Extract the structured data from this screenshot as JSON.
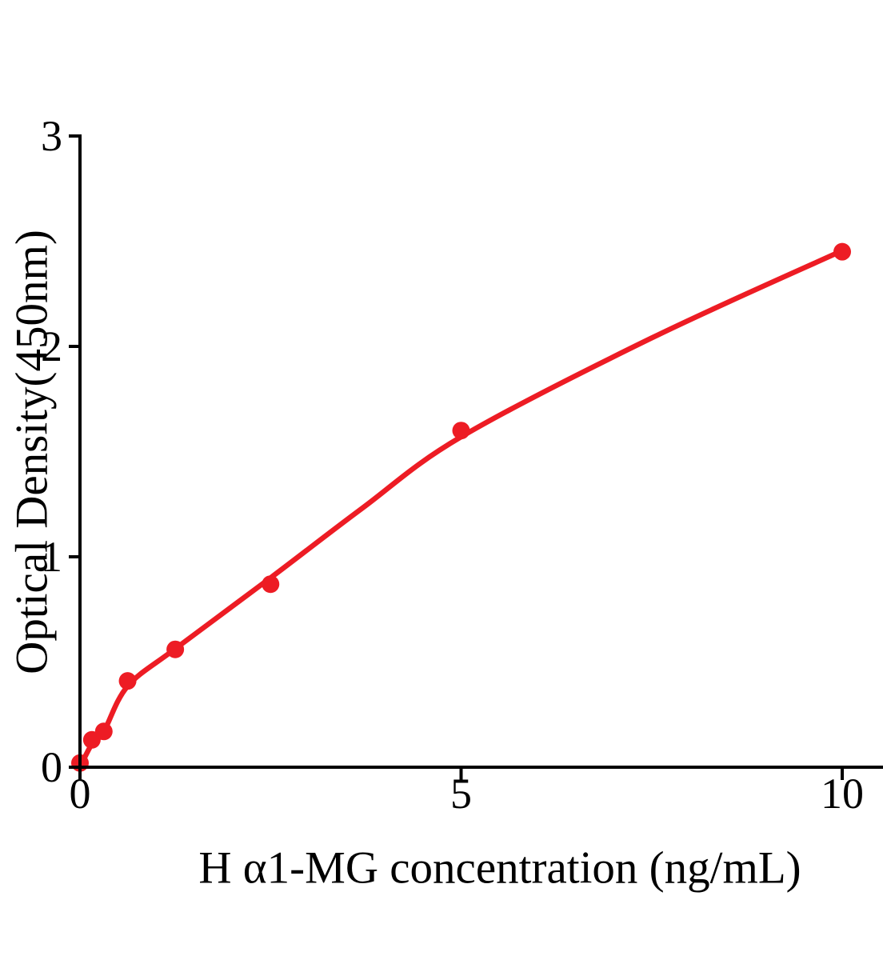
{
  "chart_data": {
    "type": "scatter",
    "title": "",
    "xlabel": "H α1-MG concentration (ng/mL)",
    "ylabel": "Optical Density(450nm)",
    "xlim": [
      0,
      10
    ],
    "ylim": [
      0,
      3
    ],
    "x_ticks": [
      0,
      5,
      10
    ],
    "y_ticks": [
      0,
      1,
      2,
      3
    ],
    "grid": false,
    "legend": false,
    "background_color": "#ffffff",
    "axis_color": "#000000",
    "marker_color": "#ED1C24",
    "curve_color": "#ED1C24",
    "points": [
      {
        "x": 0,
        "y": 0.02
      },
      {
        "x": 0.156,
        "y": 0.13
      },
      {
        "x": 0.3125,
        "y": 0.17
      },
      {
        "x": 0.625,
        "y": 0.41
      },
      {
        "x": 1.25,
        "y": 0.56
      },
      {
        "x": 2.5,
        "y": 0.87
      },
      {
        "x": 5,
        "y": 1.6
      },
      {
        "x": 10,
        "y": 2.45
      }
    ],
    "fit_curve": [
      {
        "x": 0,
        "y": 0.0
      },
      {
        "x": 0.156,
        "y": 0.11
      },
      {
        "x": 0.3125,
        "y": 0.17
      },
      {
        "x": 0.625,
        "y": 0.385
      },
      {
        "x": 1.25,
        "y": 0.563
      },
      {
        "x": 2.5,
        "y": 0.9
      },
      {
        "x": 3.7,
        "y": 1.23
      },
      {
        "x": 5,
        "y": 1.57
      },
      {
        "x": 7.5,
        "y": 2.04
      },
      {
        "x": 10,
        "y": 2.455
      }
    ]
  }
}
